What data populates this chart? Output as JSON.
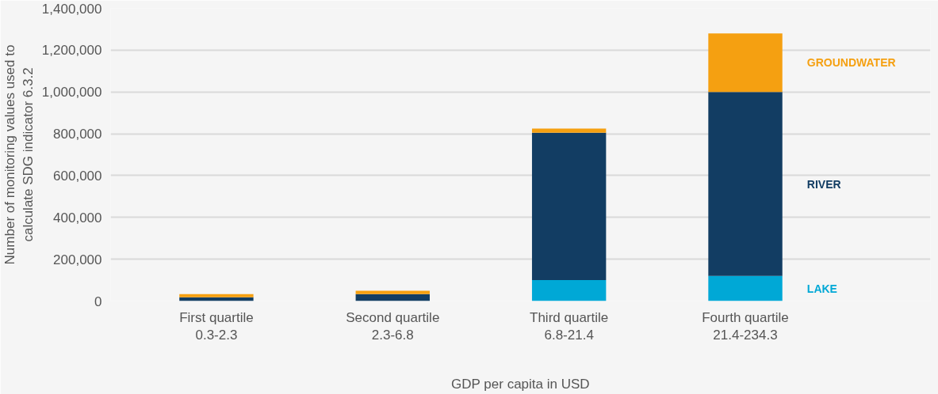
{
  "chart_data": {
    "type": "bar",
    "stacked": true,
    "xlabel": "GDP per capita in USD",
    "ylabel": "Number of monitoring values used to\ncalculate SDG indicator 6.3.2",
    "categories": [
      "First quartile\n0.3-2.3",
      "Second quartile\n2.3-6.8",
      "Third quartile\n6.8-21.4",
      "Fourth quartile\n21.4-234.3"
    ],
    "series": [
      {
        "name": "LAKE",
        "color": "#00a8d6",
        "values": [
          0,
          0,
          100000,
          120000
        ]
      },
      {
        "name": "RIVER",
        "color": "#123d63",
        "values": [
          18000,
          33000,
          705000,
          880000
        ]
      },
      {
        "name": "GROUNDWATER",
        "color": "#f5a011",
        "values": [
          15000,
          16000,
          20000,
          280000
        ]
      }
    ],
    "ylim": [
      0,
      1400000
    ],
    "yticks": [
      {
        "value": 0,
        "label": "0"
      },
      {
        "value": 200000,
        "label": "200,000"
      },
      {
        "value": 400000,
        "label": "400,000"
      },
      {
        "value": 600000,
        "label": "600,000"
      },
      {
        "value": 800000,
        "label": "800,000"
      },
      {
        "value": 1000000,
        "label": "1,000,000"
      },
      {
        "value": 1200000,
        "label": "1,200,000"
      },
      {
        "value": 1400000,
        "label": "1,400,000"
      }
    ],
    "grid": "y"
  }
}
